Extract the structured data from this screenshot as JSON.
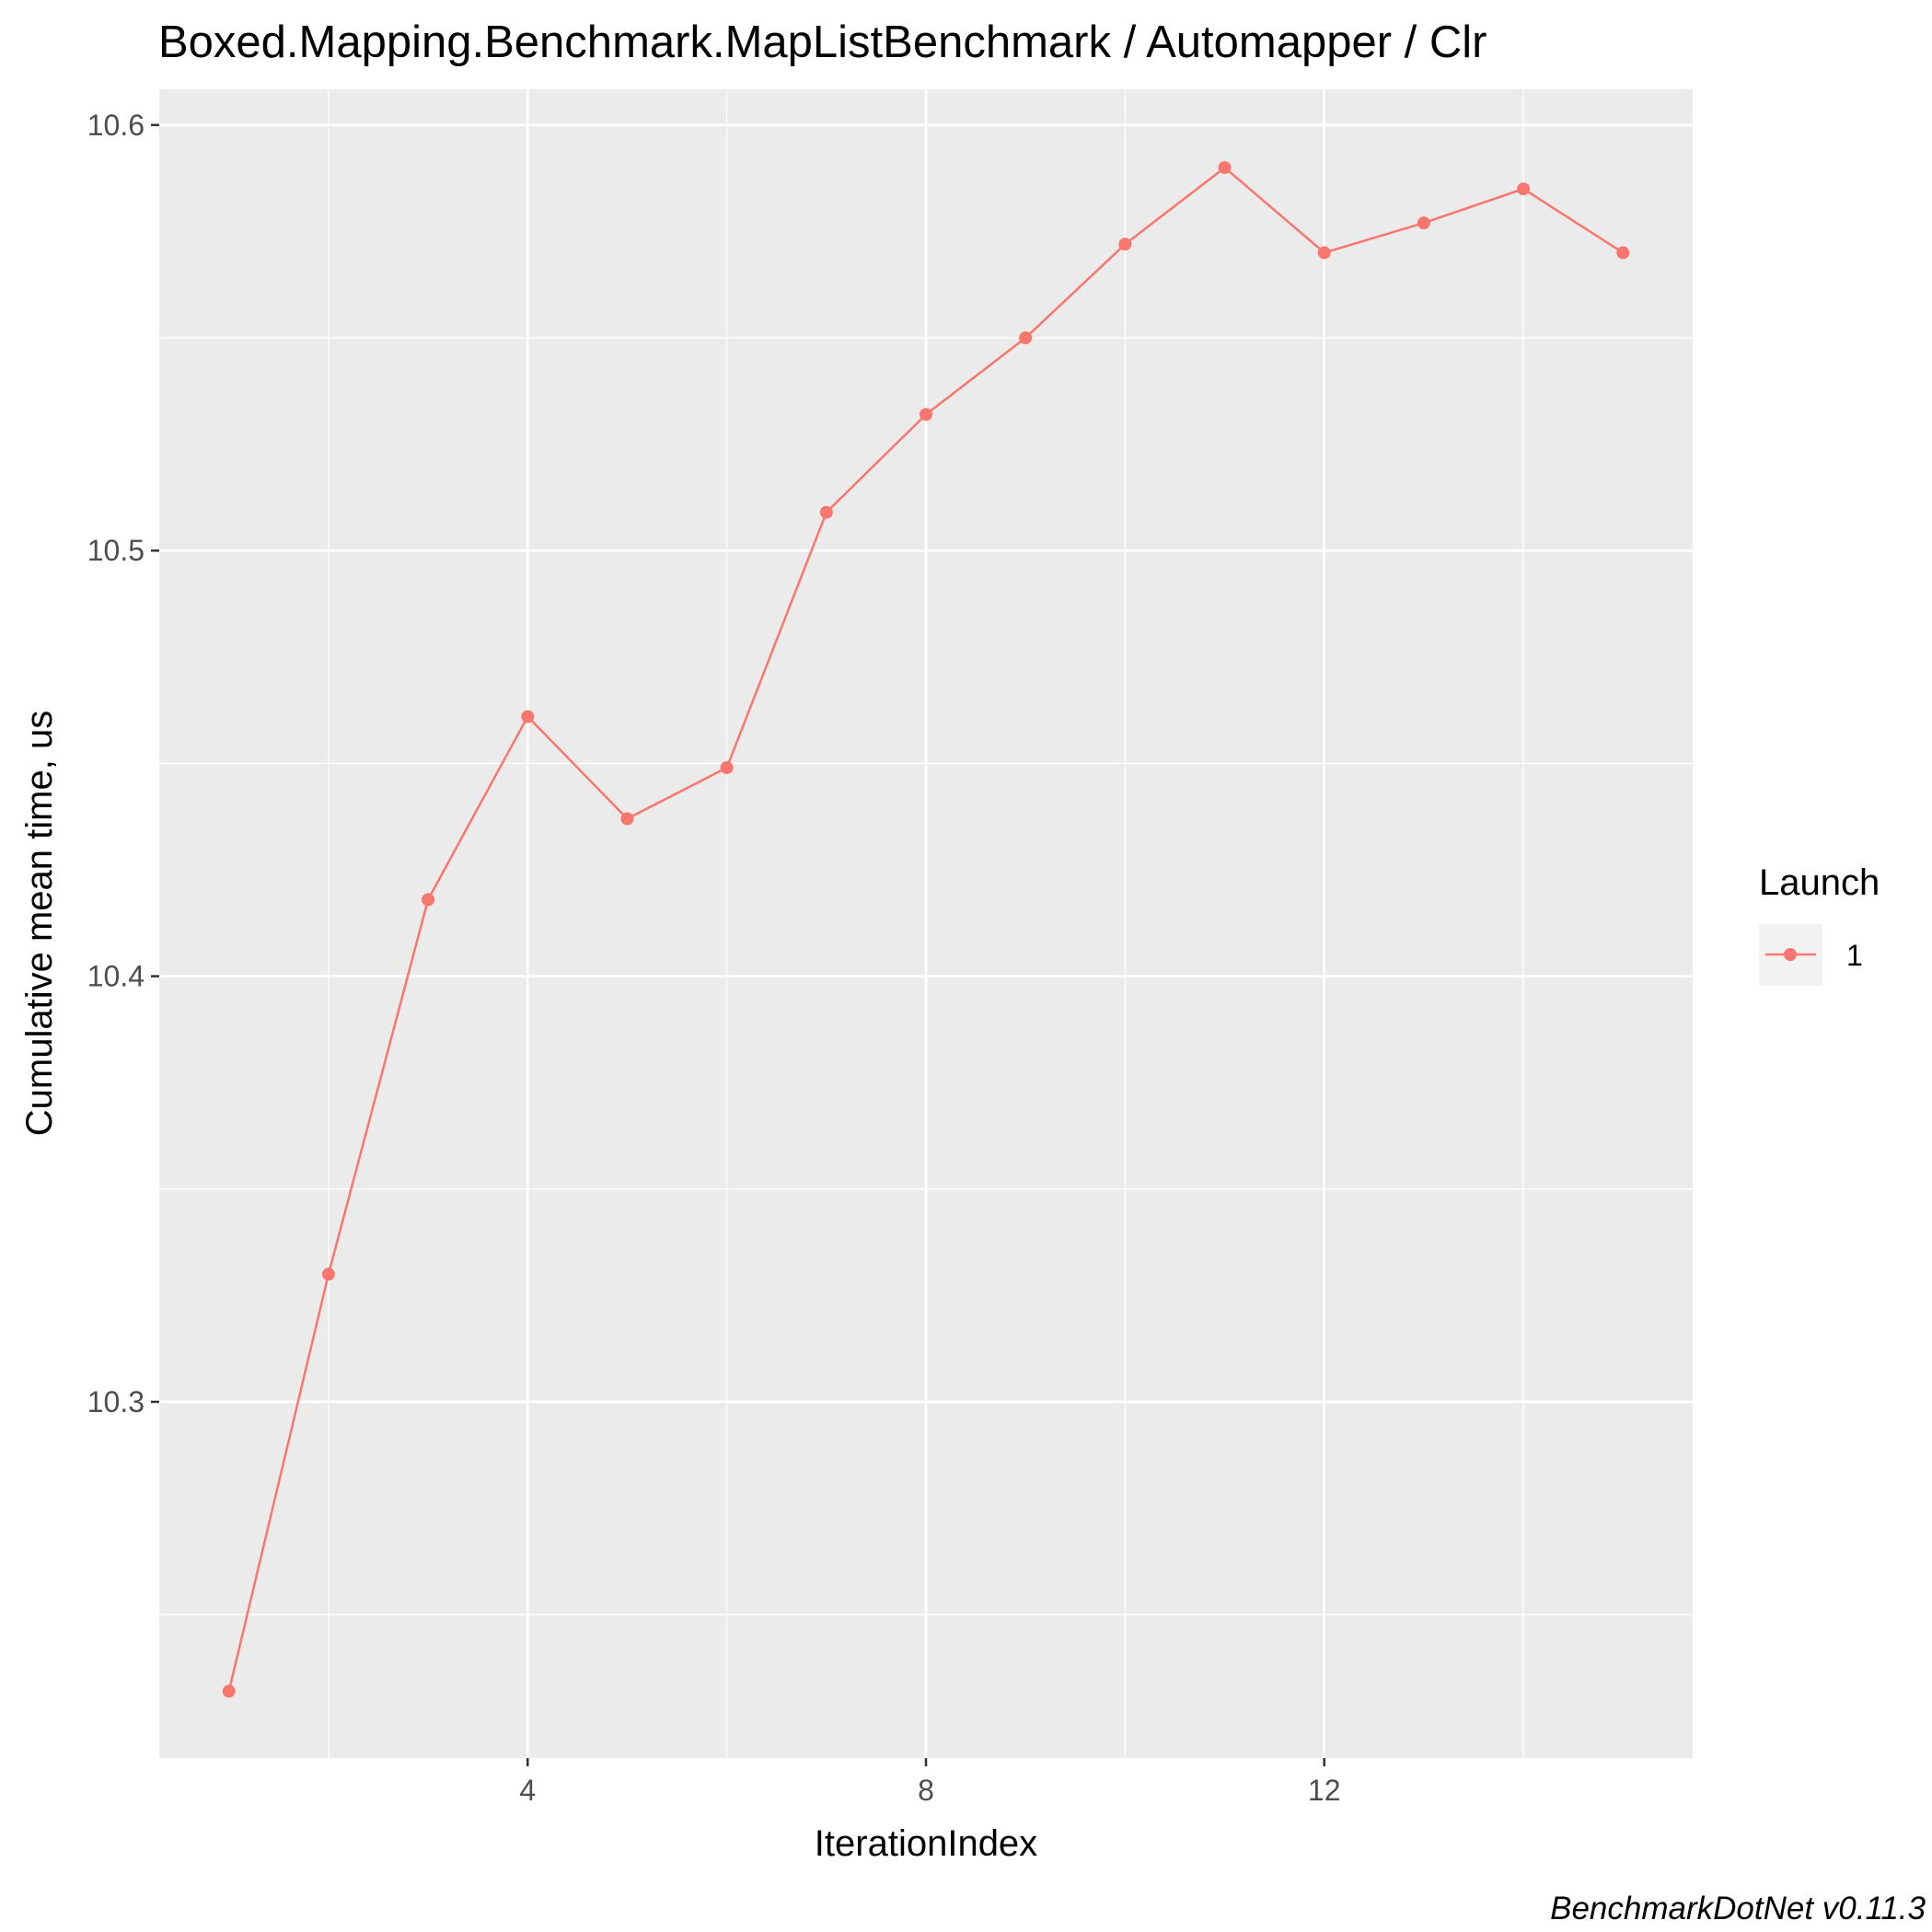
{
  "chart_data": {
    "type": "line",
    "title": "Boxed.Mapping.Benchmark.MapListBenchmark / Automapper / Clr",
    "xlabel": "IterationIndex",
    "ylabel": "Cumulative mean time, us",
    "caption": "BenchmarkDotNet v0.11.3",
    "x": [
      1,
      2,
      3,
      4,
      5,
      6,
      7,
      8,
      9,
      10,
      11,
      12,
      13,
      14,
      15
    ],
    "series": [
      {
        "name": "1",
        "color": "#F8766D",
        "values": [
          10.232,
          10.33,
          10.418,
          10.461,
          10.437,
          10.449,
          10.509,
          10.532,
          10.55,
          10.572,
          10.59,
          10.57,
          10.577,
          10.585,
          10.57
        ]
      }
    ],
    "xlim": [
      0.3,
      15.7
    ],
    "ylim": [
      10.2163,
      10.6084
    ],
    "x_ticks": [
      4,
      8,
      12
    ],
    "x_tick_labels": [
      "4",
      "8",
      "12"
    ],
    "x_minor_ticks": [
      2,
      6,
      10,
      14
    ],
    "y_ticks": [
      10.3,
      10.4,
      10.5,
      10.6
    ],
    "y_tick_labels": [
      "10.3",
      "10.4",
      "10.5",
      "10.6"
    ],
    "y_minor_ticks": [
      10.25,
      10.35,
      10.45,
      10.55
    ],
    "grid": true,
    "legend": {
      "title": "Launch",
      "placement": "right",
      "entries": [
        "1"
      ]
    },
    "panel_background": "#EBEBEB",
    "grid_color": "#FFFFFF"
  }
}
